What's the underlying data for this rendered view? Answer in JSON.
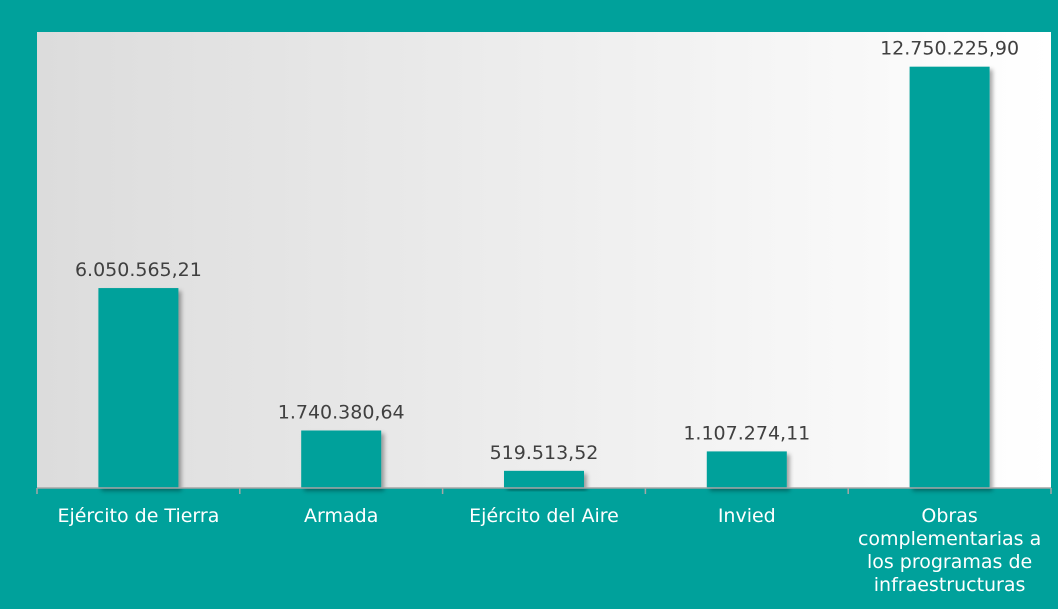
{
  "chart_data": {
    "type": "bar",
    "categories": [
      [
        "Ejército de Tierra"
      ],
      [
        "Armada"
      ],
      [
        "Ejército del Aire"
      ],
      [
        "Invied"
      ],
      [
        "Obras",
        "complementarias a",
        "los programas de",
        "infraestructuras"
      ]
    ],
    "values": [
      6050565.21,
      1740380.64,
      519513.52,
      1107274.11,
      12750225.9
    ],
    "value_labels": [
      "6.050.565,21",
      "1.740.380,64",
      "519.513,52",
      "1.107.274,11",
      "12.750.225,90"
    ],
    "ylim": [
      0,
      13800000
    ],
    "grid": false,
    "legend": "none"
  },
  "colors": {
    "frame": "#00a19b",
    "bar": "#00a19b",
    "plot_bg_left": "#dcdcdc",
    "plot_bg_right": "#ffffff",
    "value_text": "#404040",
    "category_text": "#ffffff",
    "axis": "#a6a6a6"
  }
}
